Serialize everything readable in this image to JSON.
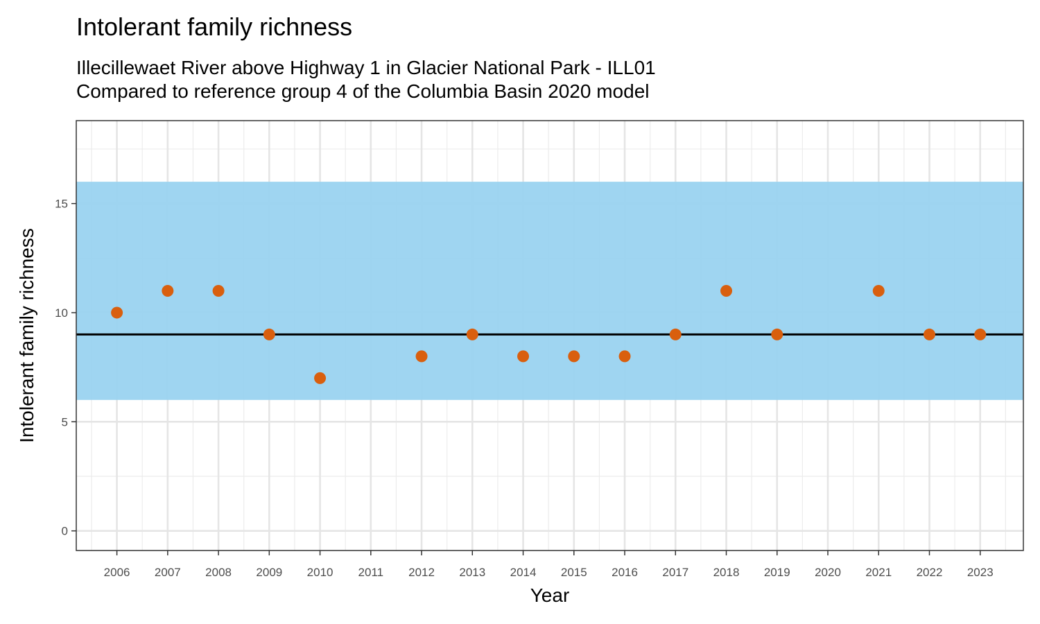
{
  "chart_data": {
    "type": "scatter",
    "title": "Intolerant family richness",
    "subtitle_lines": [
      "Illecillewaet River above Highway 1 in Glacier National Park - ILL01",
      "Compared to reference group 4 of the Columbia Basin 2020 model"
    ],
    "xlabel": "Year",
    "ylabel": "Intolerant family richness",
    "x_ticks": [
      2006,
      2007,
      2008,
      2009,
      2010,
      2011,
      2012,
      2013,
      2014,
      2015,
      2016,
      2017,
      2018,
      2019,
      2020,
      2021,
      2022,
      2023
    ],
    "y_ticks": [
      0,
      5,
      10,
      15
    ],
    "xlim": [
      2005.2,
      2023.85
    ],
    "ylim": [
      -0.9,
      18.8
    ],
    "grid": true,
    "reference_band": {
      "low": 6,
      "high": 16,
      "color": "#9AD3F0"
    },
    "reference_line": {
      "value": 9,
      "color": "#000000"
    },
    "point_color": "#D95F0E",
    "points": [
      {
        "x": 2006,
        "y": 10
      },
      {
        "x": 2007,
        "y": 11
      },
      {
        "x": 2008,
        "y": 11
      },
      {
        "x": 2009,
        "y": 9
      },
      {
        "x": 2010,
        "y": 7
      },
      {
        "x": 2012,
        "y": 8
      },
      {
        "x": 2013,
        "y": 9
      },
      {
        "x": 2014,
        "y": 8
      },
      {
        "x": 2015,
        "y": 8
      },
      {
        "x": 2016,
        "y": 8
      },
      {
        "x": 2017,
        "y": 9
      },
      {
        "x": 2018,
        "y": 11
      },
      {
        "x": 2019,
        "y": 9
      },
      {
        "x": 2021,
        "y": 11
      },
      {
        "x": 2022,
        "y": 9
      },
      {
        "x": 2023,
        "y": 9
      }
    ]
  }
}
